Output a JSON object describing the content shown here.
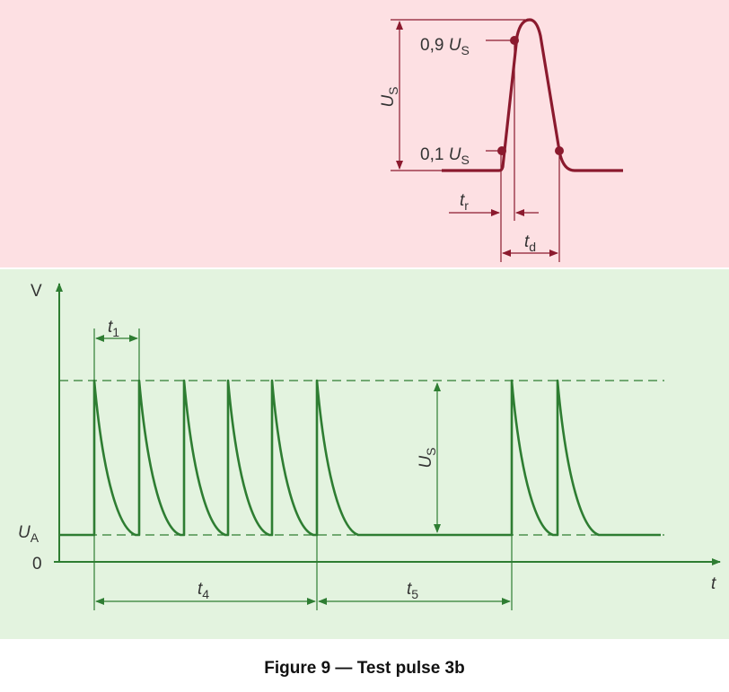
{
  "colors": {
    "top_panel_bg": "#fde0e3",
    "bottom_panel_bg": "#e3f3df",
    "top_line": "#8b1a2e",
    "bottom_line": "#2e7d32",
    "label_text": "#333333"
  },
  "top_panel": {
    "label_09_prefix": "0,9 ",
    "label_01_prefix": "0,1 ",
    "U": "U",
    "S": "S",
    "t": "t",
    "r": "r",
    "d": "d"
  },
  "bottom_panel": {
    "y_axis_label": "V",
    "x_axis_label": "t",
    "zero_label": "0",
    "UA_U": "U",
    "UA_sub": "A",
    "US_U": "U",
    "US_sub": "S",
    "t1_t": "t",
    "t1_sub": "1",
    "t4_t": "t",
    "t4_sub": "4",
    "t5_t": "t",
    "t5_sub": "5"
  },
  "caption": "Figure 9 — Test pulse 3b"
}
